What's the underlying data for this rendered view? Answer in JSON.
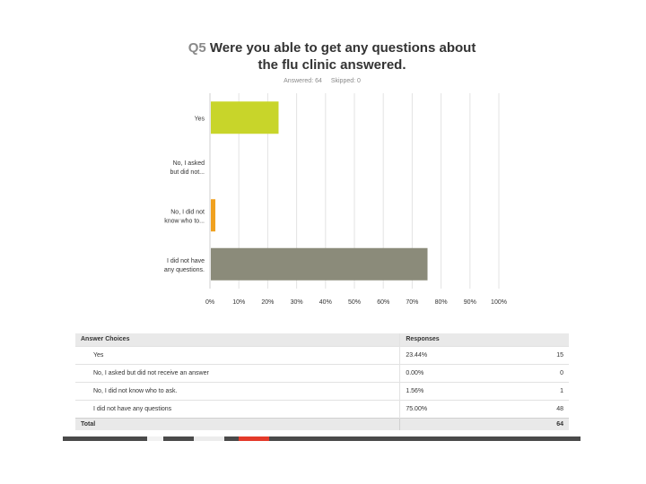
{
  "title": {
    "number": "Q5",
    "text": "Were you able to get any questions about the flu clinic answered."
  },
  "stats": {
    "answered": "Answered: 64",
    "skipped": "Skipped: 0"
  },
  "chart_data": {
    "type": "bar",
    "orientation": "horizontal",
    "categories": [
      [
        "Yes"
      ],
      [
        "No, I asked",
        "but did not..."
      ],
      [
        "No, I did not",
        "know who to..."
      ],
      [
        "I did not have",
        "any questions."
      ]
    ],
    "values": [
      23.44,
      0.0,
      1.56,
      75.0
    ],
    "colors": [
      "#c8d52a",
      "#3b8ea5",
      "#f0a11f",
      "#8b8b7a"
    ],
    "xlim": [
      0,
      100
    ],
    "xticks": [
      "0%",
      "10%",
      "20%",
      "30%",
      "40%",
      "50%",
      "60%",
      "70%",
      "80%",
      "90%",
      "100%"
    ],
    "grid": true
  },
  "table": {
    "headers": {
      "choices": "Answer Choices",
      "responses": "Responses"
    },
    "rows": [
      {
        "choice": "Yes",
        "percent": "23.44%",
        "count": "15"
      },
      {
        "choice": "No, I asked but did not receive an answer",
        "percent": "0.00%",
        "count": "0"
      },
      {
        "choice": "No, I did not know who to ask.",
        "percent": "1.56%",
        "count": "1"
      },
      {
        "choice": "I did not have any questions",
        "percent": "75.00%",
        "count": "48"
      }
    ],
    "total_label": "Total",
    "total_count": "64"
  }
}
